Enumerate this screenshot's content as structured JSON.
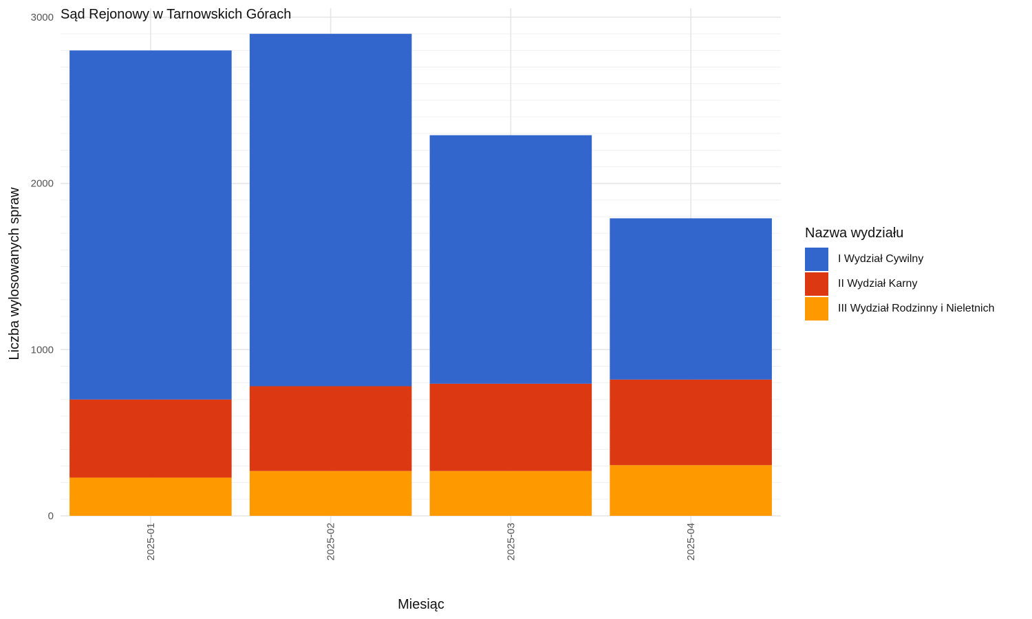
{
  "chart_data": {
    "type": "bar",
    "stacked": true,
    "title": "Sąd Rejonowy w Tarnowskich Górach",
    "xlabel": "Miesiąc",
    "ylabel": "Liczba wylosowanych spraw",
    "ylim": [
      0,
      3000
    ],
    "yticks": [
      0,
      1000,
      2000,
      3000
    ],
    "grid": true,
    "legend_title": "Nazwa wydziału",
    "legend_position": "right",
    "categories": [
      "2025-01",
      "2025-02",
      "2025-03",
      "2025-04"
    ],
    "series": [
      {
        "name": "III Wydział Rodzinny i Nieletnich",
        "color": "#FF9900",
        "values": [
          230,
          270,
          270,
          305
        ]
      },
      {
        "name": "II Wydział Karny",
        "color": "#DC3912",
        "values": [
          470,
          510,
          525,
          515
        ]
      },
      {
        "name": "I Wydział Cywilny",
        "color": "#3366CC",
        "values": [
          2100,
          2120,
          1495,
          970
        ]
      }
    ],
    "legend_order": [
      "I Wydział Cywilny",
      "II Wydział Karny",
      "III Wydział Rodzinny i Nieletnich"
    ]
  }
}
